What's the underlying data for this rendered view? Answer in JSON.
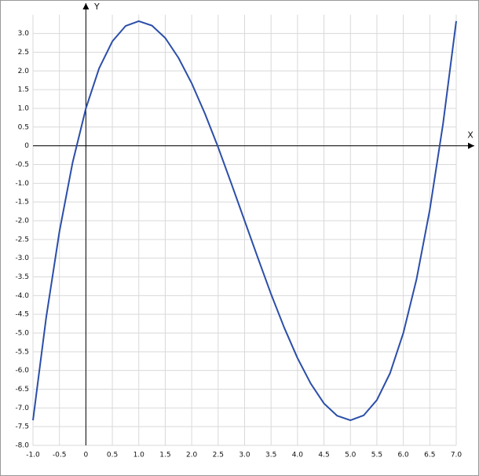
{
  "chart_data": {
    "type": "line",
    "x_label": "X",
    "y_label": "Y",
    "x": [
      -1,
      -0.75,
      -0.5,
      -0.25,
      0,
      0.25,
      0.5,
      0.75,
      1,
      1.25,
      1.5,
      1.75,
      2,
      2.25,
      2.5,
      2.75,
      3,
      3.25,
      3.5,
      3.75,
      4,
      4.25,
      4.5,
      4.75,
      5,
      5.25,
      5.5,
      5.75,
      6,
      6.25,
      6.5,
      6.75,
      7
    ],
    "series": [
      {
        "color": "#2b4ea8",
        "values": [
          -7.33,
          -4.58,
          -2.29,
          -0.44,
          1,
          2.07,
          2.79,
          3.2,
          3.33,
          3.21,
          2.88,
          2.35,
          1.67,
          0.86,
          -0.04,
          -1.01,
          -2,
          -2.99,
          -3.96,
          -4.86,
          -5.67,
          -6.35,
          -6.88,
          -7.21,
          -7.33,
          -7.2,
          -6.79,
          -6.07,
          -5,
          -3.56,
          -1.71,
          0.58,
          3.33
        ]
      }
    ],
    "xlim": [
      -1,
      7
    ],
    "ylim": [
      -8,
      3.5
    ],
    "xticks": [
      {
        "value": -1,
        "label": "-1.0"
      },
      {
        "value": -0.5,
        "label": "-0.5"
      },
      0,
      {
        "value": 0.5,
        "label": "0.5"
      },
      {
        "value": 1,
        "label": "1.0"
      },
      {
        "value": 1.5,
        "label": "1.5"
      },
      {
        "value": 2,
        "label": "2.0"
      },
      {
        "value": 2.5,
        "label": "2.5"
      },
      {
        "value": 3,
        "label": "3.0"
      },
      {
        "value": 3.5,
        "label": "3.5"
      },
      {
        "value": 4,
        "label": "4.0"
      },
      {
        "value": 4.5,
        "label": "4.5"
      },
      {
        "value": 5,
        "label": "5.0"
      },
      {
        "value": 5.5,
        "label": "5.5"
      },
      {
        "value": 6,
        "label": "6.0"
      },
      {
        "value": 6.5,
        "label": "6.5"
      },
      {
        "value": 7,
        "label": "7.0"
      }
    ],
    "yticks": [
      {
        "value": 3,
        "label": "3.0"
      },
      {
        "value": 2.5,
        "label": "2.5"
      },
      {
        "value": 2,
        "label": "2.0"
      },
      {
        "value": 1.5,
        "label": "1.5"
      },
      {
        "value": 1,
        "label": "1.0"
      },
      {
        "value": 0.5,
        "label": "0.5"
      },
      0,
      {
        "value": -0.5,
        "label": "-0.5"
      },
      {
        "value": -1,
        "label": "-1.0"
      },
      {
        "value": -1.5,
        "label": "-1.5"
      },
      {
        "value": -2,
        "label": "-2.0"
      },
      {
        "value": -2.5,
        "label": "-2.5"
      },
      {
        "value": -3,
        "label": "-3.0"
      },
      {
        "value": -3.5,
        "label": "-3.5"
      },
      {
        "value": -4,
        "label": "-4.0"
      },
      {
        "value": -4.5,
        "label": "-4.5"
      },
      {
        "value": -5,
        "label": "-5.0"
      },
      {
        "value": -5.5,
        "label": "-5.5"
      },
      {
        "value": -6,
        "label": "-6.0"
      },
      {
        "value": -6.5,
        "label": "-6.5"
      },
      {
        "value": -7,
        "label": "-7.0"
      },
      {
        "value": -7.5,
        "label": "-7.5"
      },
      {
        "value": -8,
        "label": "-8.0"
      }
    ],
    "grid": true
  }
}
